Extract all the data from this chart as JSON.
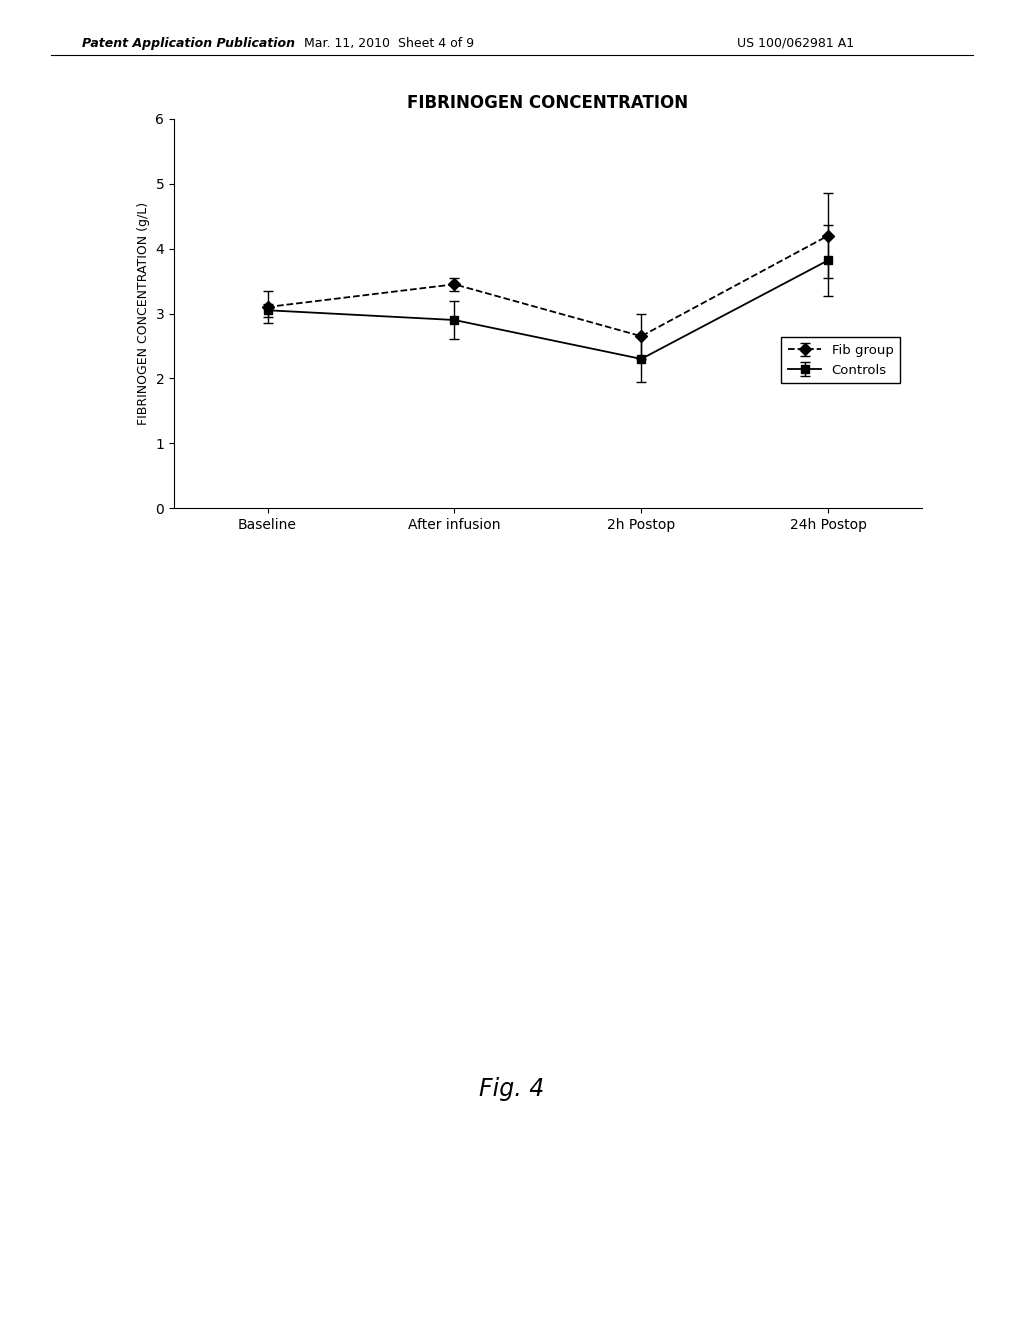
{
  "title": "FIBRINOGEN CONCENTRATION",
  "ylabel": "FIBRINOGEN CONCENTRATION (g/L)",
  "xlabel": "",
  "x_labels": [
    "Baseline",
    "After infusion",
    "2h Postop",
    "24h Postop"
  ],
  "fib_group": {
    "label": "Fib group",
    "y": [
      3.1,
      3.45,
      2.65,
      4.2
    ],
    "yerr": [
      0.25,
      0.1,
      0.35,
      0.65
    ]
  },
  "controls": {
    "label": "Controls",
    "y": [
      3.05,
      2.9,
      2.3,
      3.82
    ],
    "yerr": [
      0.1,
      0.3,
      0.35,
      0.55
    ]
  },
  "ylim": [
    0,
    6
  ],
  "yticks": [
    0,
    1,
    2,
    3,
    4,
    5,
    6
  ],
  "fig_width": 10.24,
  "fig_height": 13.2,
  "dpi": 100,
  "header_left": "Patent Application Publication",
  "header_center": "Mar. 11, 2010  Sheet 4 of 9",
  "header_right": "US 100/062981 A1",
  "fig_caption": "Fig. 4"
}
